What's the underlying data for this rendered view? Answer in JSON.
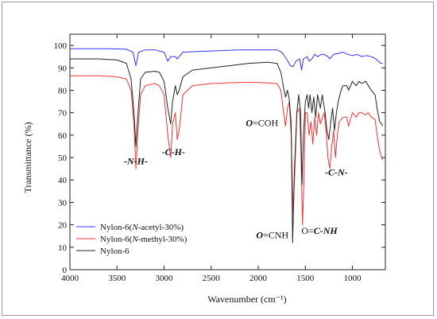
{
  "chart_data": {
    "type": "line",
    "title": "",
    "xlabel": "Wavenumber (cm⁻¹)",
    "ylabel": "Transmittance (%)",
    "xlim": [
      4000,
      650
    ],
    "ylim": [
      0,
      105
    ],
    "x_reversed": true,
    "xticks": [
      4000,
      3500,
      3000,
      2500,
      2000,
      1500,
      1000
    ],
    "yticks": [
      0,
      10,
      20,
      30,
      40,
      50,
      60,
      70,
      80,
      90,
      100
    ],
    "grid": false,
    "legend_position": "bottom-left",
    "series": [
      {
        "name": "Nylon-6(N-acetyl-30%)",
        "color": "#3333ff",
        "points": [
          [
            4000,
            98.5
          ],
          [
            3600,
            98.5
          ],
          [
            3400,
            98.3
          ],
          [
            3330,
            97
          ],
          [
            3300,
            91
          ],
          [
            3270,
            97
          ],
          [
            3200,
            98
          ],
          [
            3100,
            98
          ],
          [
            3000,
            97
          ],
          [
            2960,
            93
          ],
          [
            2930,
            95
          ],
          [
            2880,
            95
          ],
          [
            2860,
            94
          ],
          [
            2800,
            97
          ],
          [
            2500,
            97.5
          ],
          [
            2200,
            98
          ],
          [
            1800,
            98
          ],
          [
            1750,
            97
          ],
          [
            1700,
            94
          ],
          [
            1660,
            91
          ],
          [
            1630,
            90.5
          ],
          [
            1600,
            93
          ],
          [
            1560,
            94
          ],
          [
            1540,
            89
          ],
          [
            1520,
            94
          ],
          [
            1480,
            95
          ],
          [
            1460,
            93
          ],
          [
            1430,
            94
          ],
          [
            1400,
            96
          ],
          [
            1370,
            95
          ],
          [
            1330,
            96
          ],
          [
            1300,
            96
          ],
          [
            1260,
            95
          ],
          [
            1240,
            94
          ],
          [
            1200,
            96
          ],
          [
            1100,
            97
          ],
          [
            1050,
            96
          ],
          [
            1000,
            95.5
          ],
          [
            950,
            96
          ],
          [
            900,
            95
          ],
          [
            850,
            95.5
          ],
          [
            800,
            95
          ],
          [
            750,
            94
          ],
          [
            700,
            92
          ],
          [
            680,
            92
          ]
        ]
      },
      {
        "name": "Nylon-6(N-methyl-30%)",
        "color": "#ee3333",
        "points": [
          [
            4000,
            86.5
          ],
          [
            3700,
            86.5
          ],
          [
            3500,
            86
          ],
          [
            3400,
            85
          ],
          [
            3350,
            80
          ],
          [
            3320,
            65
          ],
          [
            3300,
            45
          ],
          [
            3280,
            60
          ],
          [
            3250,
            78
          ],
          [
            3200,
            82
          ],
          [
            3100,
            83
          ],
          [
            3050,
            82
          ],
          [
            3000,
            78
          ],
          [
            2960,
            60
          ],
          [
            2930,
            50
          ],
          [
            2910,
            65
          ],
          [
            2880,
            70
          ],
          [
            2860,
            58
          ],
          [
            2840,
            62
          ],
          [
            2800,
            78
          ],
          [
            2700,
            82
          ],
          [
            2500,
            83
          ],
          [
            2200,
            83.5
          ],
          [
            2000,
            83.5
          ],
          [
            1800,
            83
          ],
          [
            1760,
            80
          ],
          [
            1730,
            70
          ],
          [
            1710,
            64
          ],
          [
            1690,
            72
          ],
          [
            1670,
            75
          ],
          [
            1650,
            60
          ],
          [
            1630,
            25
          ],
          [
            1610,
            45
          ],
          [
            1590,
            70
          ],
          [
            1560,
            72
          ],
          [
            1545,
            50
          ],
          [
            1530,
            20
          ],
          [
            1515,
            40
          ],
          [
            1500,
            70
          ],
          [
            1480,
            70
          ],
          [
            1460,
            60
          ],
          [
            1440,
            66
          ],
          [
            1420,
            56
          ],
          [
            1400,
            68
          ],
          [
            1380,
            60
          ],
          [
            1360,
            70
          ],
          [
            1340,
            65
          ],
          [
            1300,
            70
          ],
          [
            1280,
            62
          ],
          [
            1260,
            50
          ],
          [
            1240,
            45
          ],
          [
            1220,
            55
          ],
          [
            1200,
            62
          ],
          [
            1180,
            50
          ],
          [
            1160,
            60
          ],
          [
            1140,
            66
          ],
          [
            1100,
            68
          ],
          [
            1060,
            68
          ],
          [
            1040,
            64
          ],
          [
            1000,
            70
          ],
          [
            960,
            68
          ],
          [
            930,
            70
          ],
          [
            900,
            70
          ],
          [
            860,
            69
          ],
          [
            830,
            70
          ],
          [
            800,
            68
          ],
          [
            760,
            67
          ],
          [
            730,
            58
          ],
          [
            710,
            53
          ],
          [
            690,
            50
          ],
          [
            680,
            49
          ]
        ]
      },
      {
        "name": "Nylon-6",
        "color": "#222222",
        "points": [
          [
            4000,
            94
          ],
          [
            3700,
            94
          ],
          [
            3500,
            93.5
          ],
          [
            3400,
            92
          ],
          [
            3350,
            85
          ],
          [
            3320,
            70
          ],
          [
            3300,
            55
          ],
          [
            3280,
            68
          ],
          [
            3250,
            85
          ],
          [
            3200,
            88
          ],
          [
            3100,
            88.5
          ],
          [
            3050,
            88
          ],
          [
            3000,
            84
          ],
          [
            2960,
            72
          ],
          [
            2930,
            65
          ],
          [
            2910,
            75
          ],
          [
            2880,
            82
          ],
          [
            2860,
            78
          ],
          [
            2840,
            80
          ],
          [
            2800,
            86
          ],
          [
            2700,
            89
          ],
          [
            2500,
            90
          ],
          [
            2300,
            91
          ],
          [
            2100,
            92
          ],
          [
            1900,
            92.5
          ],
          [
            1800,
            92
          ],
          [
            1760,
            88
          ],
          [
            1730,
            81
          ],
          [
            1710,
            77
          ],
          [
            1690,
            80
          ],
          [
            1670,
            76
          ],
          [
            1650,
            65
          ],
          [
            1635,
            12
          ],
          [
            1615,
            45
          ],
          [
            1590,
            70
          ],
          [
            1570,
            78
          ],
          [
            1550,
            70
          ],
          [
            1535,
            38
          ],
          [
            1520,
            60
          ],
          [
            1500,
            75
          ],
          [
            1480,
            78
          ],
          [
            1465,
            72
          ],
          [
            1450,
            78
          ],
          [
            1430,
            70
          ],
          [
            1410,
            77
          ],
          [
            1390,
            68
          ],
          [
            1370,
            78
          ],
          [
            1340,
            72
          ],
          [
            1320,
            78
          ],
          [
            1290,
            70
          ],
          [
            1270,
            62
          ],
          [
            1250,
            58
          ],
          [
            1230,
            66
          ],
          [
            1210,
            72
          ],
          [
            1190,
            62
          ],
          [
            1170,
            70
          ],
          [
            1150,
            75
          ],
          [
            1120,
            80
          ],
          [
            1100,
            82
          ],
          [
            1060,
            82
          ],
          [
            1040,
            80
          ],
          [
            1000,
            84
          ],
          [
            960,
            82
          ],
          [
            930,
            84
          ],
          [
            900,
            83
          ],
          [
            860,
            84
          ],
          [
            830,
            82
          ],
          [
            800,
            80
          ],
          [
            760,
            78
          ],
          [
            730,
            70
          ],
          [
            710,
            66
          ],
          [
            690,
            65
          ],
          [
            680,
            64
          ]
        ]
      }
    ],
    "annotations": [
      {
        "text": "-N-H-",
        "x": 3300,
        "y": 47,
        "style": "bold-italic"
      },
      {
        "text": "-C-H-",
        "x": 2900,
        "y": 51,
        "style": "bold-italic"
      },
      {
        "parts": [
          {
            "text": "O",
            "style": "bold-italic"
          },
          {
            "text": "=COH",
            "style": "normal"
          }
        ],
        "x": 1960,
        "y": 64
      },
      {
        "text": "-C-N-",
        "x": 1170,
        "y": 42,
        "style": "bold-italic"
      },
      {
        "parts": [
          {
            "text": "O",
            "style": "bold-italic"
          },
          {
            "text": "=CNH",
            "style": "normal"
          }
        ],
        "x": 1850,
        "y": 14
      },
      {
        "parts": [
          {
            "text": "O=",
            "style": "normal"
          },
          {
            "text": "C-NH",
            "style": "bold-italic"
          }
        ],
        "x": 1350,
        "y": 16
      }
    ],
    "legend_entries": [
      {
        "parts": [
          {
            "text": "Nylon-6(",
            "style": "normal"
          },
          {
            "text": "N",
            "style": "italic"
          },
          {
            "text": "-acetyl-30%)",
            "style": "normal"
          }
        ]
      },
      {
        "parts": [
          {
            "text": "Nylon-6(",
            "style": "normal"
          },
          {
            "text": "N",
            "style": "italic"
          },
          {
            "text": "-methyl-30%)",
            "style": "normal"
          }
        ]
      },
      {
        "parts": [
          {
            "text": "Nylon-6",
            "style": "normal"
          }
        ]
      }
    ]
  }
}
